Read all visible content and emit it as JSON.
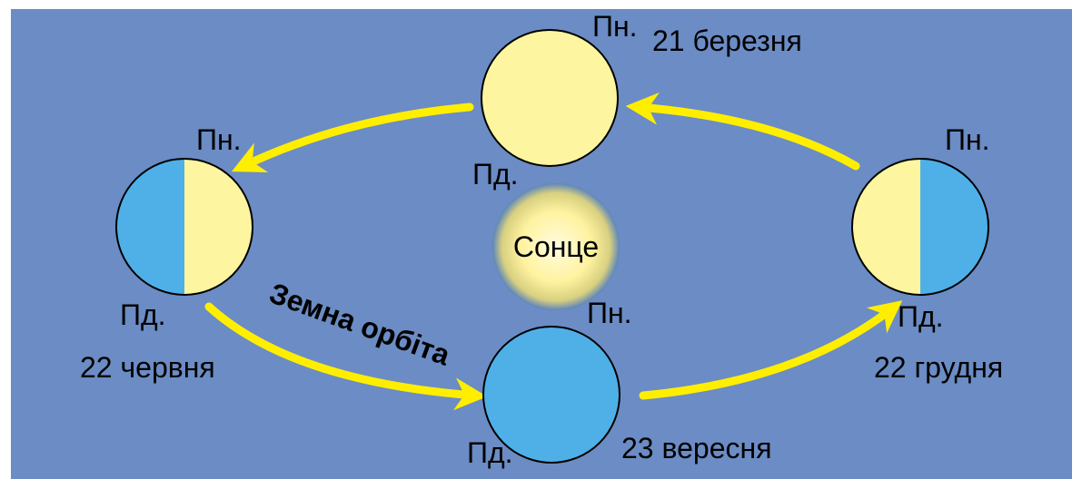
{
  "sun": "Сонце",
  "orbit_label": "Земна орбіта",
  "positions": [
    {
      "date": "21 березня",
      "north": "Пн.",
      "south": "Пд."
    },
    {
      "date": "22 червня",
      "north": "Пн.",
      "south": "Пд."
    },
    {
      "date": "23 вересня",
      "north": "Пн.",
      "south": "Пд."
    },
    {
      "date": "22 грудня",
      "north": "Пн.",
      "south": "Пд."
    }
  ]
}
